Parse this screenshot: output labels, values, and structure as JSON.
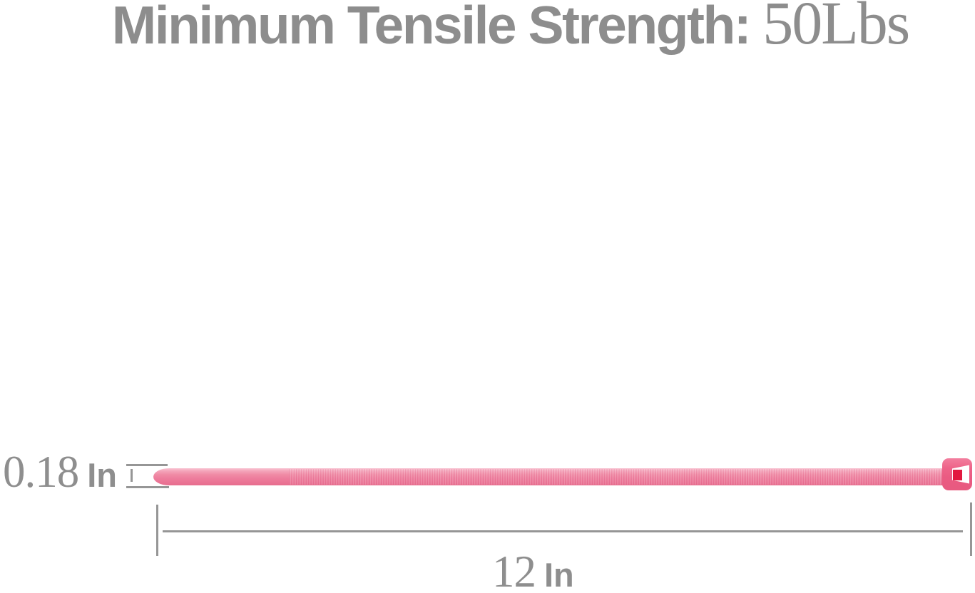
{
  "title": {
    "strong": "Minimum Tensile Strength:",
    "value": "50Lbs",
    "color": "#8d8d8d"
  },
  "dimensions": {
    "thickness": {
      "number": "0.18",
      "unit": "In"
    },
    "length": {
      "number": "12",
      "unit": "In"
    },
    "line_color": "#969696"
  },
  "cable_tie": {
    "description": "pink nylon zip cable tie shown horizontally with tapered tip on the left and locking head on the right",
    "body_color": "#ee7f9e",
    "highlight_color": "#f9c3d1",
    "head_color": "#ea5b82",
    "pawl_color": "#e2183f"
  }
}
